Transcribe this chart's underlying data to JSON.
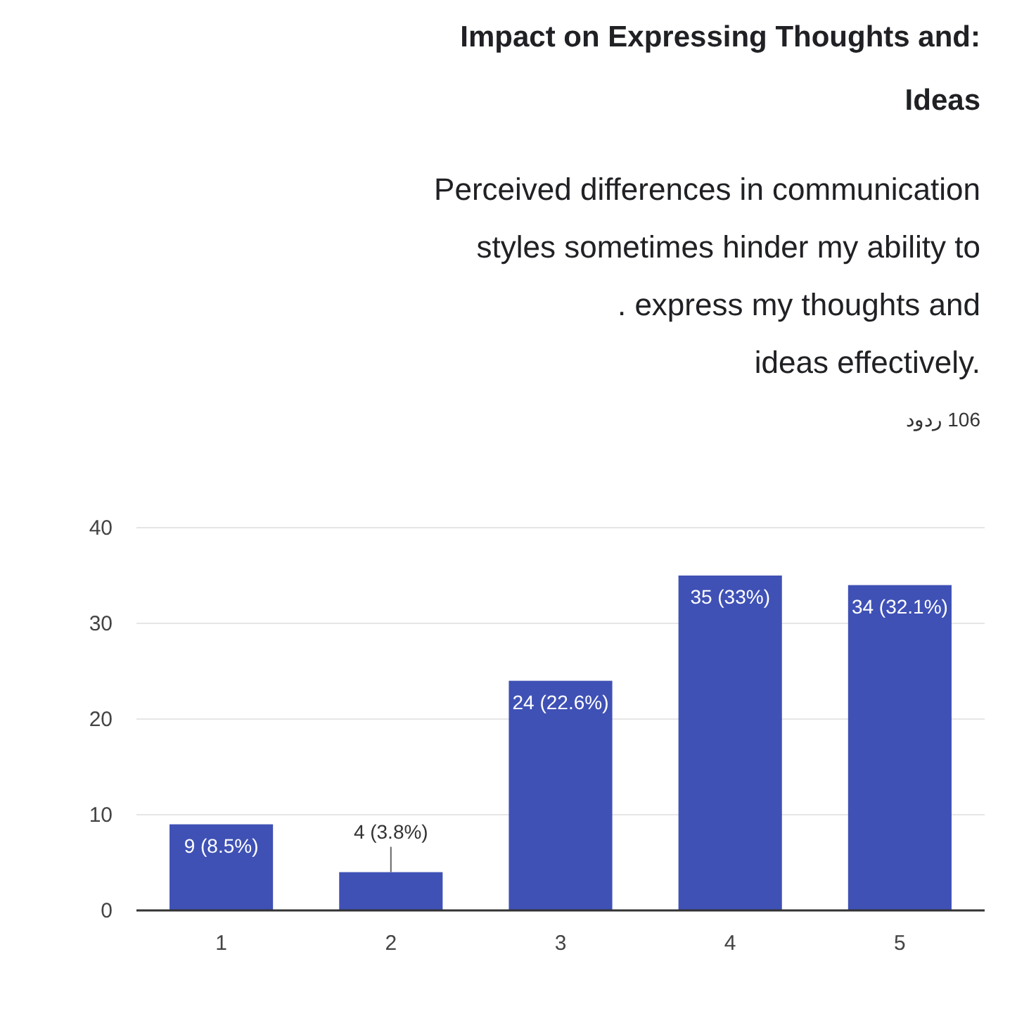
{
  "chart_data": {
    "type": "bar",
    "title": "Impact on Expressing Thoughts and:\nIdeas",
    "subtitle": "Perceived differences in communication\nstyles sometimes hinder my ability to\n. express my thoughts and\nideas effectively.",
    "annotations": [
      "106 ردود"
    ],
    "categories": [
      "1",
      "2",
      "3",
      "4",
      "5"
    ],
    "values": [
      9,
      4,
      24,
      35,
      34
    ],
    "value_labels": [
      "9 (8.5%)",
      "4 (3.8%)",
      "24 (22.6%)",
      "35 (33%)",
      "34 (32.1%)"
    ],
    "color": "#3f51b5",
    "ylim": [
      0,
      40
    ],
    "yticks": [
      0,
      10,
      20,
      30,
      40
    ],
    "grid": "y"
  }
}
